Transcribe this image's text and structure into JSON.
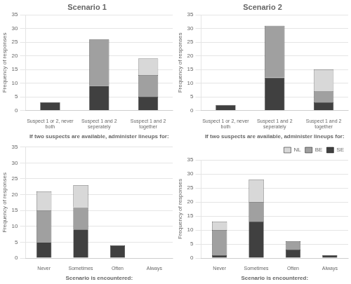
{
  "chart_data": [
    {
      "type": "bar",
      "title": "Scenario 1",
      "stacked": true,
      "categories": [
        "Suspect 1 or 2, never\nboth",
        "Suspect 1 and 2\nseperately",
        "Suspect 1 and 2\ntogether"
      ],
      "series": [
        {
          "name": "SE",
          "color": "#404040",
          "values": [
            3,
            9,
            5
          ]
        },
        {
          "name": "BE",
          "color": "#a0a0a0",
          "values": [
            0,
            17,
            8
          ]
        },
        {
          "name": "NL",
          "color": "#d8d8d8",
          "values": [
            0,
            0,
            6
          ]
        }
      ],
      "xlabel": "If two suspects are available, administer lineups for:",
      "ylabel": "Frequency of responses",
      "ylim": [
        0,
        35
      ],
      "yticks": [
        0,
        5,
        10,
        15,
        20,
        25,
        30,
        35
      ],
      "grid": "y"
    },
    {
      "type": "bar",
      "title": "Scenario 2",
      "stacked": true,
      "categories": [
        "Suspect 1 or 2, never\nboth",
        "Suspect 1 and 2\nseperately",
        "Suspect 1 and 2\ntogether"
      ],
      "series": [
        {
          "name": "SE",
          "color": "#404040",
          "values": [
            2,
            12,
            3
          ]
        },
        {
          "name": "BE",
          "color": "#a0a0a0",
          "values": [
            0,
            19,
            4
          ]
        },
        {
          "name": "NL",
          "color": "#d8d8d8",
          "values": [
            0,
            0,
            8
          ]
        }
      ],
      "xlabel": "If two suspects are available, administer lineups for:",
      "ylabel": "Frequency of responses",
      "ylim": [
        0,
        35
      ],
      "yticks": [
        0,
        5,
        10,
        15,
        20,
        25,
        30,
        35
      ],
      "grid": "y"
    },
    {
      "type": "bar",
      "stacked": true,
      "categories": [
        "Never",
        "Sometimes",
        "Often",
        "Always"
      ],
      "series": [
        {
          "name": "SE",
          "color": "#404040",
          "values": [
            5,
            9,
            4,
            0
          ]
        },
        {
          "name": "BE",
          "color": "#a0a0a0",
          "values": [
            10,
            7,
            0,
            0
          ]
        },
        {
          "name": "NL",
          "color": "#d8d8d8",
          "values": [
            6,
            7,
            0,
            0
          ]
        }
      ],
      "xlabel": "Scenario is encountered:",
      "ylabel": "Frequency of responses",
      "ylim": [
        0,
        35
      ],
      "yticks": [
        0,
        5,
        10,
        15,
        20,
        25,
        30,
        35
      ],
      "grid": "y"
    },
    {
      "type": "bar",
      "stacked": true,
      "legend": "upper right",
      "categories": [
        "Never",
        "Sometimes",
        "Often",
        "Always"
      ],
      "series": [
        {
          "name": "SE",
          "color": "#404040",
          "values": [
            1,
            13,
            3,
            1
          ]
        },
        {
          "name": "BE",
          "color": "#a0a0a0",
          "values": [
            9,
            7,
            3,
            0
          ]
        },
        {
          "name": "NL",
          "color": "#d8d8d8",
          "values": [
            3,
            8,
            0,
            0
          ]
        }
      ],
      "xlabel": "Scenario is encountered:",
      "ylabel": "Frequency of responses",
      "ylim": [
        0,
        35
      ],
      "yticks": [
        0,
        5,
        10,
        15,
        20,
        25,
        30,
        35
      ],
      "grid": "y"
    }
  ]
}
